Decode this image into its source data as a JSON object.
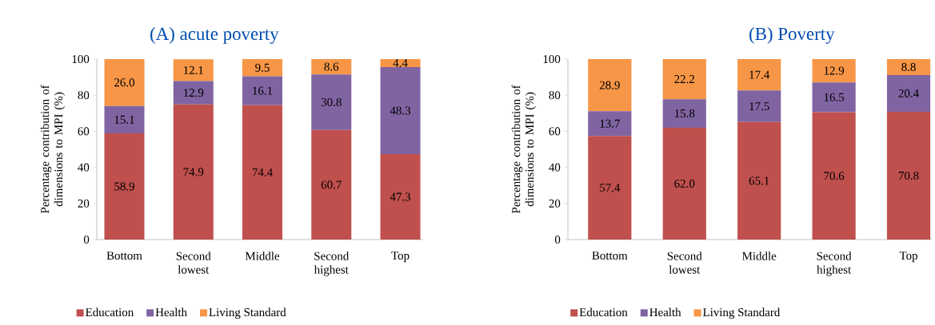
{
  "chart_data": [
    {
      "type": "bar",
      "title": "(A) acute poverty",
      "ylabel": "Percentage contribution of dimensions to MPI (%)",
      "categories": [
        "Bottom",
        "Second lowest",
        "Middle",
        "Second highest",
        "Top"
      ],
      "stacked": true,
      "ylim": [
        0,
        100
      ],
      "yticks": [
        0,
        20,
        40,
        60,
        80,
        100
      ],
      "legend": "bottom",
      "series": [
        {
          "name": "Education",
          "color": "#c0504d",
          "values": [
            58.9,
            74.9,
            74.4,
            60.7,
            47.3
          ],
          "value_labels": [
            "58.9",
            "74.9",
            "74.4",
            "60.7",
            "47.3"
          ]
        },
        {
          "name": "Health",
          "color": "#8064a2",
          "values": [
            15.1,
            12.9,
            16.1,
            30.8,
            48.3
          ],
          "value_labels": [
            "15.1",
            "12.9",
            "16.1",
            "30.8",
            "48.3"
          ]
        },
        {
          "name": "Living Standard",
          "color": "#f79646",
          "values": [
            26.0,
            12.1,
            9.5,
            8.6,
            4.4
          ],
          "value_labels": [
            "26.0",
            "12.1",
            "9.5",
            "8.6",
            "4.4"
          ]
        }
      ]
    },
    {
      "type": "bar",
      "title": "(B) Poverty",
      "ylabel": "Percentage contribution of dimensions to MPI (%)",
      "categories": [
        "Bottom",
        "Second lowest",
        "Middle",
        "Second highest",
        "Top"
      ],
      "stacked": true,
      "ylim": [
        0,
        100
      ],
      "yticks": [
        0,
        20,
        40,
        60,
        80,
        100
      ],
      "legend": "bottom",
      "series": [
        {
          "name": "Education",
          "color": "#c0504d",
          "values": [
            57.4,
            62.0,
            65.1,
            70.6,
            70.8
          ],
          "value_labels": [
            "57.4",
            "62.0",
            "65.1",
            "70.6",
            "70.8"
          ]
        },
        {
          "name": "Health",
          "color": "#8064a2",
          "values": [
            13.7,
            15.8,
            17.5,
            16.5,
            20.4
          ],
          "value_labels": [
            "13.7",
            "15.8",
            "17.5",
            "16.5",
            "20.4"
          ]
        },
        {
          "name": "Living Standard",
          "color": "#f79646",
          "values": [
            28.9,
            22.2,
            17.4,
            12.9,
            8.8
          ],
          "value_labels": [
            "28.9",
            "22.2",
            "17.4",
            "12.9",
            "8.8"
          ]
        }
      ]
    }
  ]
}
